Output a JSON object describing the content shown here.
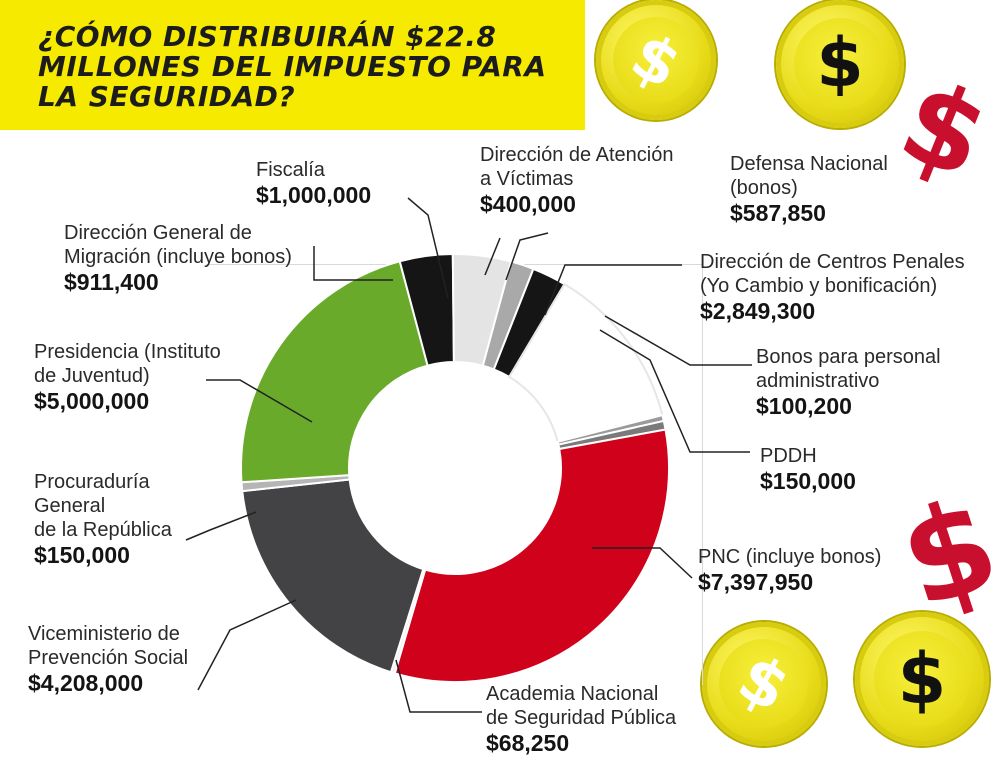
{
  "title": "¿Cómo distribuirán $22.8 millones del impuesto para la seguridad?",
  "coins": {
    "symbol": "$",
    "colors": {
      "coin_gold": "#e8dc1a",
      "dollar_red": "#c8102e",
      "dollar_black": "#111111"
    }
  },
  "chart_data": {
    "type": "pie",
    "style": "donut",
    "title": "¿Cómo distribuirán $22.8 millones del impuesto para la seguridad?",
    "series": [
      {
        "name": "Dirección de Atención a Víctimas",
        "label": "$400,000",
        "value": 400000,
        "color": "#a9a9a9"
      },
      {
        "name": "Defensa Nacional (bonos)",
        "label": "$587,850",
        "value": 587850,
        "color": "#151515"
      },
      {
        "name": "Dirección de Centros Penales (Yo Cambio y bonificación)",
        "label": "$2,849,300",
        "value": 2849300,
        "color": "#ffffff"
      },
      {
        "name": "Bonos para personal administrativo",
        "label": "$100,200",
        "value": 100200,
        "color": "#9a9a9a"
      },
      {
        "name": "PDDH",
        "label": "$150,000",
        "value": 150000,
        "color": "#7a7a7a"
      },
      {
        "name": "PNC (incluye bonos)",
        "label": "$7,397,950",
        "value": 7397950,
        "color": "#d0021b"
      },
      {
        "name": "Academia Nacional de Seguridad Pública",
        "label": "$68,250",
        "value": 68250,
        "color": "#f2f2f2"
      },
      {
        "name": "Viceministerio de Prevención Social",
        "label": "$4,208,000",
        "value": 4208000,
        "color": "#434345"
      },
      {
        "name": "Procuraduría General de la República",
        "label": "$150,000",
        "value": 150000,
        "color": "#b5b5b5"
      },
      {
        "name": "Presidencia (Instituto de Juventud)",
        "label": "$5,000,000",
        "value": 5000000,
        "color": "#6aaa2a"
      },
      {
        "name": "Dirección General de Migración (incluye bonos)",
        "label": "$911,400",
        "value": 911400,
        "color": "#151515"
      },
      {
        "name": "Fiscalía",
        "label": "$1,000,000",
        "value": 1000000,
        "color": "#e4e4e4"
      }
    ]
  },
  "labels": {
    "victimas": {
      "name": "Dirección de Atención\na Víctimas",
      "value": "$400,000"
    },
    "defensa": {
      "name": "Defensa Nacional\n(bonos)",
      "value": "$587,850"
    },
    "fiscalia": {
      "name": "Fiscalía",
      "value": "$1,000,000"
    },
    "migracion": {
      "name": "Dirección General de\nMigración (incluye bonos)",
      "value": "$911,400"
    },
    "penales": {
      "name": "Dirección de Centros Penales\n(Yo Cambio y bonificación)",
      "value": "$2,849,300"
    },
    "presidencia": {
      "name": "Presidencia (Instituto\nde Juventud)",
      "value": "$5,000,000"
    },
    "bonos": {
      "name": "Bonos para personal\nadministrativo",
      "value": "$100,200"
    },
    "pddh": {
      "name": "PDDH",
      "value": "$150,000"
    },
    "procuraduria": {
      "name": "Procuraduría\nGeneral\nde la República",
      "value": "$150,000"
    },
    "pnc": {
      "name": "PNC (incluye bonos)",
      "value": "$7,397,950"
    },
    "viceministerio": {
      "name": "Viceministerio de\nPrevención Social",
      "value": "$4,208,000"
    },
    "academia": {
      "name": "Academia Nacional\nde Seguridad Pública",
      "value": "$68,250"
    }
  }
}
